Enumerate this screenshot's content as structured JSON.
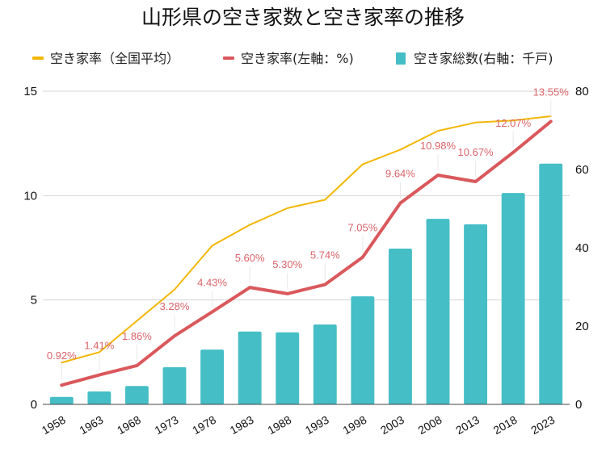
{
  "chart_data": {
    "type": "bar+line",
    "title": "山形県の空き家数と空き家率の推移",
    "categories": [
      "1958",
      "1963",
      "1968",
      "1973",
      "1978",
      "1983",
      "1988",
      "1993",
      "1998",
      "2003",
      "2008",
      "2013",
      "2018",
      "2023"
    ],
    "series": [
      {
        "name": "空き家率（全国平均）",
        "type": "line",
        "axis": "left",
        "color": "#f2b705",
        "values": [
          2.0,
          2.5,
          4.0,
          5.5,
          7.6,
          8.6,
          9.4,
          9.8,
          11.5,
          12.2,
          13.1,
          13.5,
          13.6,
          13.8
        ]
      },
      {
        "name": "空き家率(左軸：%)",
        "type": "line",
        "axis": "left",
        "color": "#d9585c",
        "values": [
          0.92,
          1.41,
          1.86,
          3.28,
          4.43,
          5.6,
          5.3,
          5.74,
          7.05,
          9.64,
          10.98,
          10.67,
          12.07,
          13.55
        ],
        "data_labels": [
          "0.92%",
          "1.41%",
          "1.86%",
          "3.28%",
          "4.43%",
          "5.60%",
          "5.30%",
          "5.74%",
          "7.05%",
          "9.64%",
          "10.98%",
          "10.67%",
          "12.07%",
          "13.55%"
        ]
      },
      {
        "name": "空き家総数(右軸：千戸)",
        "type": "bar",
        "axis": "right",
        "color": "#45bec6",
        "values": [
          1.9,
          3.3,
          4.7,
          9.5,
          14.0,
          18.6,
          18.4,
          20.4,
          27.6,
          39.8,
          47.4,
          46.0,
          54.0,
          61.5
        ]
      }
    ],
    "left_axis": {
      "ylim": [
        0,
        15
      ],
      "ticks": [
        "0",
        "5",
        "10",
        "15"
      ]
    },
    "right_axis": {
      "ylim": [
        0,
        80
      ],
      "ticks": [
        "0",
        "20",
        "40",
        "60",
        "80"
      ]
    },
    "xlabel": "",
    "ylabel": "",
    "grid": true,
    "legend_position": "top"
  }
}
